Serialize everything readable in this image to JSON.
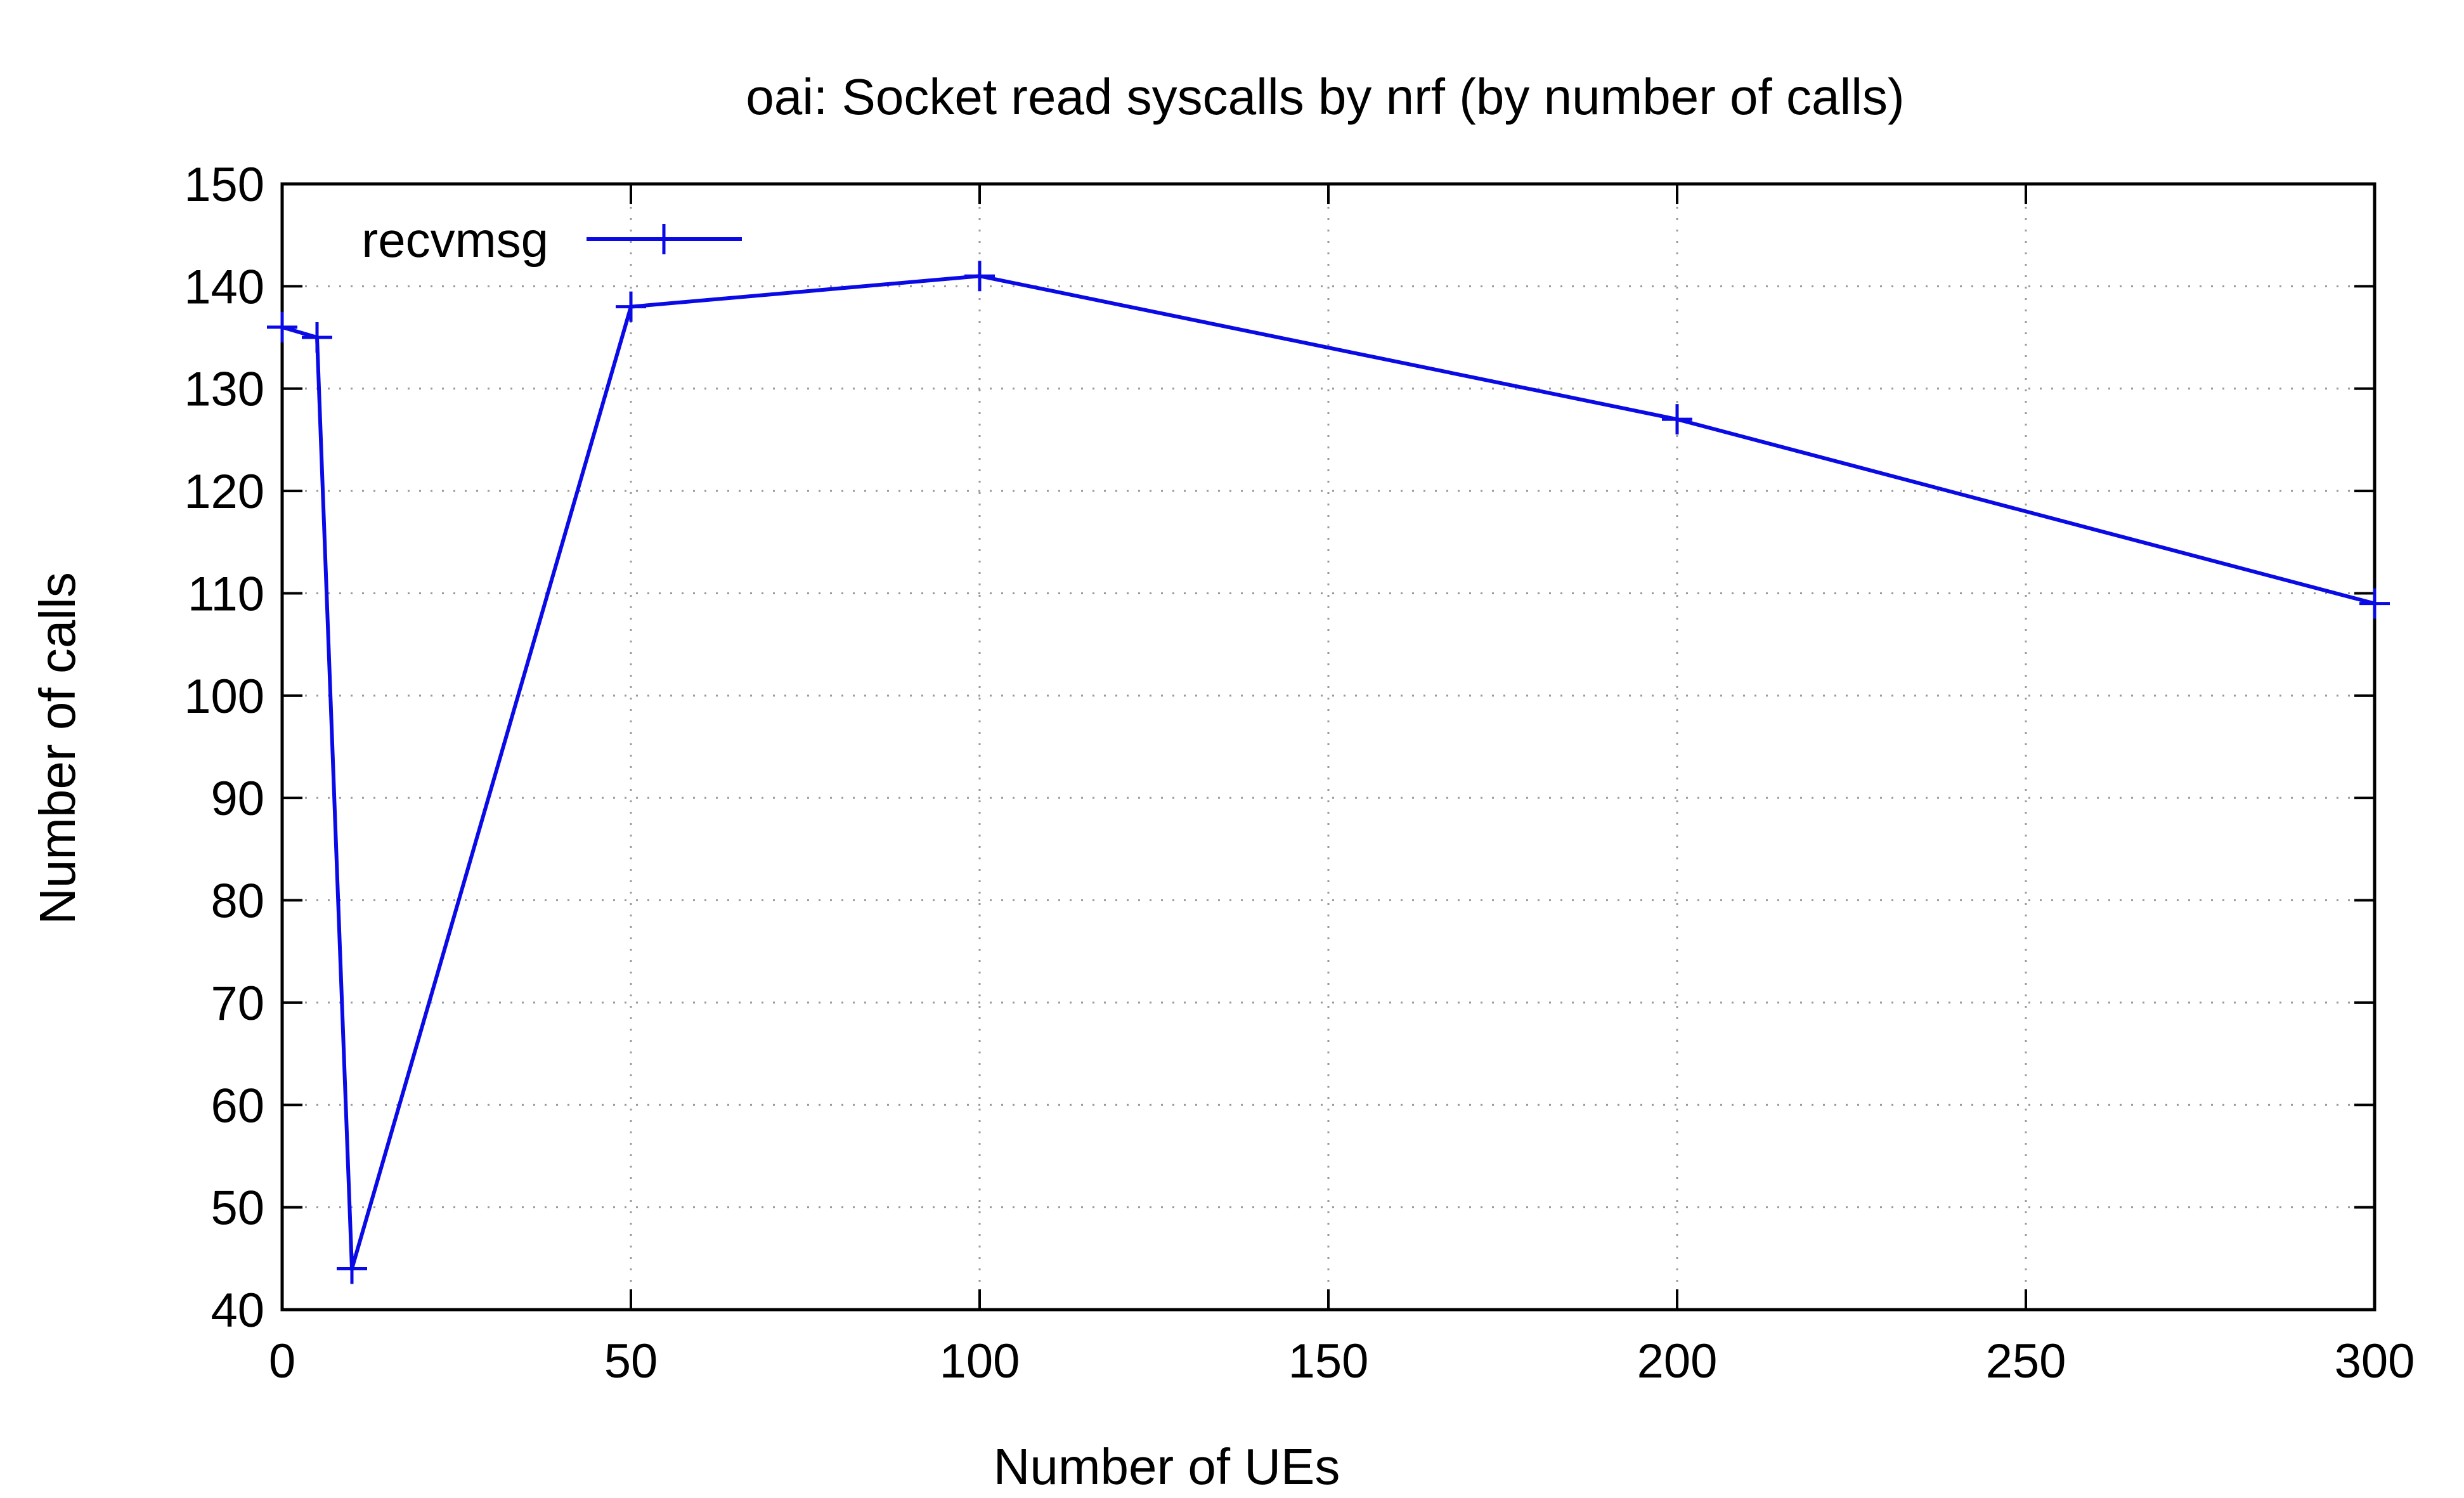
{
  "chart_data": {
    "type": "line",
    "title": "oai: Socket read syscalls by nrf (by number of calls)",
    "xlabel": "Number of UEs",
    "ylabel": "Number of calls",
    "xlim": [
      0,
      300
    ],
    "ylim": [
      40,
      150
    ],
    "xticks": [
      0,
      50,
      100,
      150,
      200,
      250,
      300
    ],
    "yticks": [
      40,
      50,
      60,
      70,
      80,
      90,
      100,
      110,
      120,
      130,
      140,
      150
    ],
    "grid": true,
    "legend_position": "top-left",
    "series": [
      {
        "name": "recvmsg",
        "color": "#0a0ae6",
        "marker": "plus",
        "x": [
          0,
          5,
          10,
          50,
          100,
          200,
          300
        ],
        "y": [
          136,
          135,
          44,
          138,
          141,
          127,
          109
        ]
      }
    ]
  }
}
